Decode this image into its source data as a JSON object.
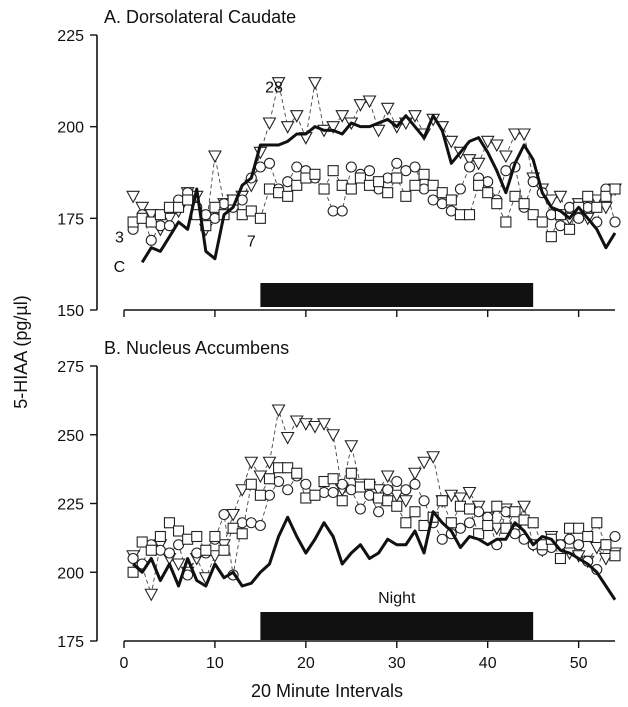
{
  "chart_data": [
    {
      "type": "line",
      "panel_title": "A. Dorsolateral Caudate",
      "xlim": [
        0,
        54
      ],
      "ylim": [
        150,
        225
      ],
      "x_ticks": [
        0,
        10,
        20,
        30,
        40,
        50
      ],
      "y_ticks": [
        150,
        175,
        200,
        225
      ],
      "night_bar": [
        15,
        45
      ],
      "annotations": [
        {
          "text": "28",
          "x": 16.5,
          "y": 211
        },
        {
          "text": "3",
          "x": -0.5,
          "y": 170
        },
        {
          "text": "C",
          "x": -0.5,
          "y": 162
        },
        {
          "text": "7",
          "x": 14,
          "y": 169
        }
      ],
      "series": [
        {
          "key": "C",
          "style": "solid",
          "x": [
            2,
            3,
            4,
            5,
            6,
            7,
            8,
            9,
            10,
            11,
            12,
            13,
            14,
            15,
            16,
            17,
            18,
            19,
            20,
            21,
            22,
            23,
            24,
            25,
            26,
            27,
            28,
            29,
            30,
            31,
            32,
            33,
            34,
            35,
            36,
            37,
            38,
            39,
            40,
            41,
            42,
            43,
            44,
            45,
            46,
            47,
            48,
            49,
            50,
            51,
            52,
            53,
            54
          ],
          "y": [
            163,
            167,
            166,
            170,
            174,
            172,
            183,
            166,
            164,
            176,
            178,
            184,
            186,
            195,
            195,
            195,
            196,
            198,
            198,
            200,
            199,
            199,
            198,
            201,
            200,
            200,
            201,
            202,
            200,
            203,
            200,
            197,
            203,
            199,
            190,
            193,
            196,
            197,
            193,
            188,
            182,
            190,
            195,
            191,
            182,
            178,
            177,
            175,
            178,
            175,
            172,
            167,
            171
          ]
        },
        {
          "key": "28",
          "style": "dashed",
          "marker": "triangle",
          "x": [
            1,
            2,
            3,
            4,
            5,
            6,
            7,
            8,
            9,
            10,
            11,
            12,
            13,
            14,
            15,
            16,
            17,
            18,
            19,
            20,
            21,
            22,
            23,
            24,
            25,
            26,
            27,
            28,
            29,
            30,
            31,
            32,
            33,
            34,
            35,
            36,
            37,
            38,
            39,
            40,
            41,
            42,
            43,
            44,
            45,
            46,
            47,
            48,
            49,
            50,
            51,
            52,
            53,
            54
          ],
          "y": [
            181,
            178,
            176,
            172,
            175,
            177,
            182,
            181,
            172,
            192,
            179,
            180,
            181,
            184,
            193,
            201,
            212,
            200,
            203,
            197,
            212,
            199,
            200,
            203,
            201,
            206,
            207,
            199,
            205,
            200,
            201,
            203,
            198,
            202,
            200,
            196,
            193,
            191,
            190,
            196,
            195,
            192,
            198,
            198,
            186,
            183,
            180,
            181,
            175,
            179,
            175,
            180,
            178,
            183
          ]
        },
        {
          "key": "3",
          "style": "dashed",
          "marker": "circle",
          "x": [
            1,
            2,
            3,
            4,
            5,
            6,
            7,
            8,
            9,
            10,
            11,
            12,
            13,
            14,
            15,
            16,
            17,
            18,
            19,
            20,
            21,
            22,
            23,
            24,
            25,
            26,
            27,
            28,
            29,
            30,
            31,
            32,
            33,
            34,
            35,
            36,
            37,
            38,
            39,
            40,
            41,
            42,
            43,
            44,
            45,
            46,
            47,
            48,
            49,
            50,
            51,
            52,
            53,
            54
          ],
          "y": [
            172,
            176,
            169,
            173,
            173,
            180,
            182,
            178,
            176,
            175,
            179,
            178,
            180,
            186,
            189,
            190,
            183,
            185,
            189,
            188,
            186,
            183,
            177,
            177,
            189,
            187,
            188,
            183,
            186,
            190,
            188,
            189,
            183,
            180,
            179,
            177,
            183,
            189,
            186,
            185,
            180,
            188,
            189,
            178,
            185,
            182,
            176,
            173,
            178,
            175,
            178,
            174,
            183,
            174
          ]
        },
        {
          "key": "7",
          "style": "dashed",
          "marker": "square",
          "x": [
            1,
            2,
            3,
            4,
            5,
            6,
            7,
            8,
            9,
            10,
            11,
            12,
            13,
            14,
            15,
            16,
            17,
            18,
            19,
            20,
            21,
            22,
            23,
            24,
            25,
            26,
            27,
            28,
            29,
            30,
            31,
            32,
            33,
            34,
            35,
            36,
            37,
            38,
            39,
            40,
            41,
            42,
            43,
            44,
            45,
            46,
            47,
            48,
            49,
            50,
            51,
            52,
            53,
            54
          ],
          "y": [
            174,
            175,
            174,
            176,
            178,
            178,
            180,
            176,
            173,
            178,
            176,
            180,
            176,
            177,
            175,
            183,
            182,
            181,
            184,
            186,
            187,
            183,
            188,
            184,
            183,
            186,
            184,
            185,
            182,
            186,
            181,
            184,
            187,
            184,
            182,
            180,
            176,
            176,
            184,
            182,
            179,
            174,
            181,
            179,
            176,
            174,
            170,
            176,
            172,
            178,
            181,
            178,
            181,
            183
          ]
        }
      ]
    },
    {
      "type": "line",
      "panel_title": "B. Nucleus Accumbens",
      "xlim": [
        0,
        54
      ],
      "ylim": [
        175,
        275
      ],
      "x_ticks": [
        0,
        10,
        20,
        30,
        40,
        50
      ],
      "y_ticks": [
        175,
        200,
        225,
        250,
        275
      ],
      "night_bar": [
        15,
        45
      ],
      "night_label": "Night",
      "series": [
        {
          "key": "C",
          "style": "solid",
          "x": [
            1,
            2,
            3,
            4,
            5,
            6,
            7,
            8,
            9,
            10,
            11,
            12,
            13,
            14,
            15,
            16,
            17,
            18,
            19,
            20,
            21,
            22,
            23,
            24,
            25,
            26,
            27,
            28,
            29,
            30,
            31,
            32,
            33,
            34,
            35,
            36,
            37,
            38,
            39,
            40,
            41,
            42,
            43,
            44,
            45,
            46,
            47,
            48,
            49,
            50,
            51,
            52,
            53,
            54
          ],
          "y": [
            203,
            200,
            205,
            197,
            203,
            195,
            205,
            197,
            195,
            203,
            198,
            200,
            195,
            196,
            200,
            203,
            213,
            220,
            213,
            207,
            212,
            218,
            213,
            203,
            207,
            210,
            205,
            207,
            212,
            210,
            210,
            215,
            207,
            222,
            218,
            215,
            209,
            213,
            212,
            210,
            212,
            212,
            218,
            215,
            210,
            213,
            212,
            208,
            207,
            205,
            203,
            200,
            195,
            190
          ]
        },
        {
          "key": "28",
          "style": "dashed",
          "marker": "triangle",
          "x": [
            1,
            2,
            3,
            4,
            5,
            6,
            7,
            8,
            9,
            10,
            11,
            12,
            13,
            14,
            15,
            16,
            17,
            18,
            19,
            20,
            21,
            22,
            23,
            24,
            25,
            26,
            27,
            28,
            29,
            30,
            31,
            32,
            33,
            34,
            35,
            36,
            37,
            38,
            39,
            40,
            41,
            42,
            43,
            44,
            45,
            46,
            47,
            48,
            49,
            50,
            51,
            52,
            53,
            54
          ],
          "y": [
            206,
            202,
            192,
            210,
            205,
            203,
            200,
            205,
            198,
            206,
            210,
            221,
            230,
            240,
            235,
            240,
            259,
            249,
            255,
            254,
            253,
            254,
            250,
            230,
            246,
            232,
            231,
            230,
            235,
            228,
            226,
            236,
            240,
            242,
            226,
            228,
            227,
            229,
            224,
            220,
            216,
            223,
            215,
            224,
            210,
            208,
            213,
            210,
            207,
            206,
            204,
            209,
            205,
            207
          ]
        },
        {
          "key": "3",
          "style": "dashed",
          "marker": "circle",
          "x": [
            1,
            2,
            3,
            4,
            5,
            6,
            7,
            8,
            9,
            10,
            11,
            12,
            13,
            14,
            15,
            16,
            17,
            18,
            19,
            20,
            21,
            22,
            23,
            24,
            25,
            26,
            27,
            28,
            29,
            30,
            31,
            32,
            33,
            34,
            35,
            36,
            37,
            38,
            39,
            40,
            41,
            42,
            43,
            44,
            45,
            46,
            47,
            48,
            49,
            50,
            51,
            52,
            53,
            54
          ],
          "y": [
            205,
            203,
            210,
            208,
            207,
            210,
            199,
            207,
            207,
            212,
            221,
            199,
            218,
            218,
            217,
            228,
            233,
            230,
            235,
            232,
            228,
            229,
            229,
            232,
            230,
            223,
            228,
            222,
            230,
            233,
            230,
            232,
            226,
            218,
            212,
            214,
            216,
            218,
            222,
            220,
            210,
            222,
            214,
            212,
            210,
            208,
            209,
            210,
            212,
            210,
            204,
            201,
            210,
            213
          ]
        },
        {
          "key": "7",
          "style": "dashed",
          "marker": "square",
          "x": [
            1,
            2,
            3,
            4,
            5,
            6,
            7,
            8,
            9,
            10,
            11,
            12,
            13,
            14,
            15,
            16,
            17,
            18,
            19,
            20,
            21,
            22,
            23,
            24,
            25,
            26,
            27,
            28,
            29,
            30,
            31,
            32,
            33,
            34,
            35,
            36,
            37,
            38,
            39,
            40,
            41,
            42,
            43,
            44,
            45,
            46,
            47,
            48,
            49,
            50,
            51,
            52,
            53,
            54
          ],
          "y": [
            200,
            211,
            208,
            213,
            218,
            215,
            212,
            213,
            208,
            213,
            208,
            216,
            214,
            232,
            228,
            234,
            238,
            238,
            236,
            227,
            228,
            233,
            234,
            226,
            236,
            231,
            232,
            227,
            226,
            224,
            218,
            222,
            217,
            220,
            226,
            218,
            224,
            223,
            214,
            217,
            224,
            216,
            222,
            219,
            218,
            210,
            212,
            205,
            216,
            216,
            213,
            218,
            210,
            206
          ]
        }
      ]
    }
  ],
  "x_axis_title": "20 Minute Intervals",
  "y_axis_title": "5-HIAA (pg/µl)"
}
